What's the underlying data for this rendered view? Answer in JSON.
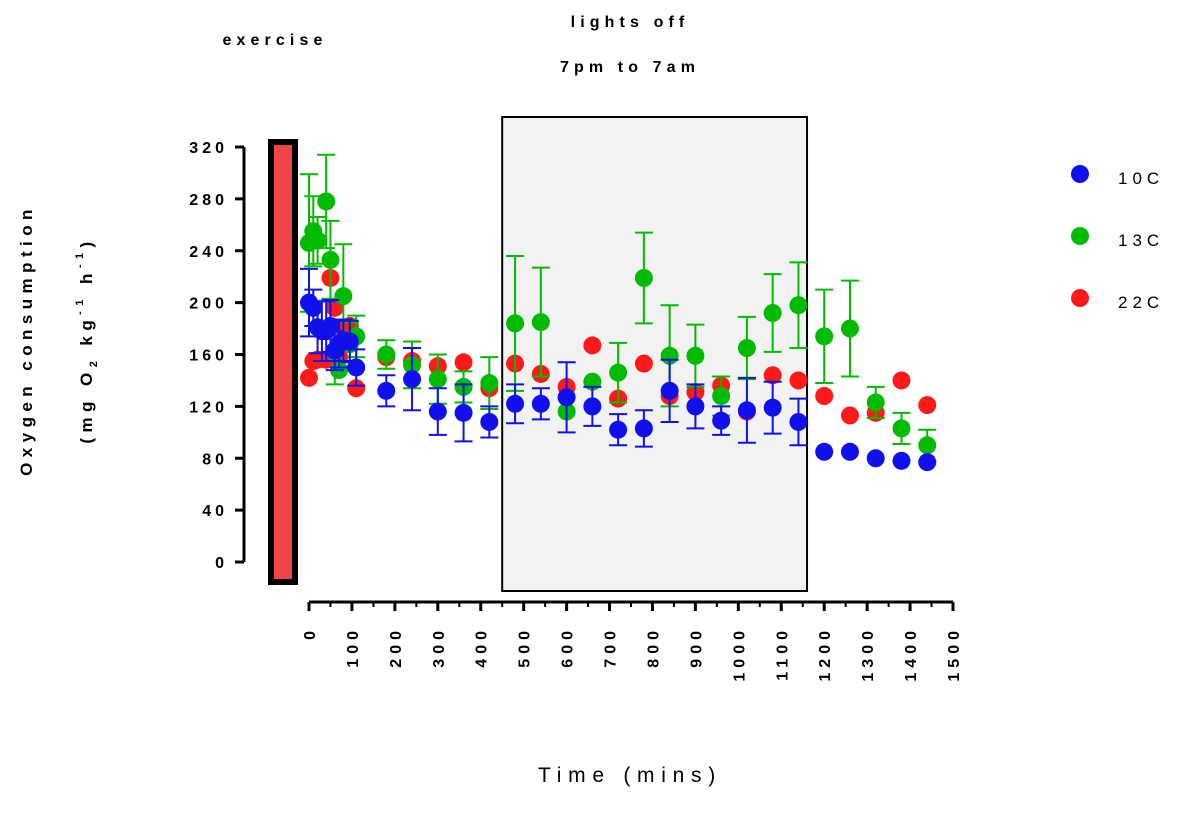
{
  "chart_data": {
    "type": "scatter",
    "xlabel": "Time (mins)",
    "ylabel_line1": "Oxygen consumption",
    "ylabel_line2": "(mg O",
    "ylabel_sub": "2",
    "ylabel_line2b": " kg",
    "ylabel_sup1": "-1",
    "ylabel_line2c": " h",
    "ylabel_sup2": "-1",
    "ylabel_line2d": ")",
    "xlim": [
      0,
      1500
    ],
    "ylim": [
      -20,
      320
    ],
    "x_ticks": [
      0,
      100,
      200,
      300,
      400,
      500,
      600,
      700,
      800,
      900,
      1000,
      1100,
      1200,
      1300,
      1400,
      1500
    ],
    "x_tick_labels": [
      "0",
      "100",
      "200",
      "300",
      "400",
      "500",
      "600",
      "700",
      "800",
      "900",
      "1000",
      "1100",
      "1200",
      "1300",
      "1400",
      "1500"
    ],
    "y_ticks": [
      0,
      40,
      80,
      120,
      160,
      200,
      240,
      280,
      320
    ],
    "y_tick_labels": [
      "0",
      "40",
      "80",
      "120",
      "160",
      "200",
      "240",
      "280",
      "320"
    ],
    "grid": false,
    "legend_position": "right",
    "annotations": {
      "exercise": "exercise",
      "lights_off": "lights off",
      "lights_hours": "7pm to 7am",
      "exercise_value": 320,
      "lights_off_range": [
        450,
        1160
      ]
    },
    "series": [
      {
        "name": "22C",
        "color": "#ff1a1a",
        "x": [
          0,
          10,
          20,
          40,
          50,
          60,
          70,
          80,
          95,
          110,
          180,
          240,
          300,
          360,
          420,
          480,
          540,
          600,
          660,
          720,
          780,
          840,
          900,
          960,
          1020,
          1080,
          1140,
          1200,
          1260,
          1320,
          1380,
          1440
        ],
        "y": [
          142,
          155,
          156,
          156,
          219,
          196,
          158,
          180,
          182,
          134,
          158,
          155,
          151,
          154,
          134,
          153,
          145,
          135,
          167,
          126,
          153,
          128,
          131,
          136,
          116,
          144,
          140,
          128,
          113,
          115,
          140,
          121
        ],
        "err": [
          0,
          0,
          0,
          0,
          0,
          0,
          0,
          0,
          0,
          0,
          0,
          0,
          0,
          0,
          0,
          0,
          0,
          0,
          0,
          0,
          0,
          0,
          0,
          0,
          0,
          0,
          0,
          0,
          0,
          0,
          0,
          0
        ]
      },
      {
        "name": "13C",
        "color": "#00bb00",
        "x": [
          0,
          10,
          20,
          40,
          50,
          60,
          70,
          80,
          95,
          110,
          180,
          240,
          300,
          360,
          420,
          480,
          540,
          600,
          660,
          720,
          780,
          840,
          900,
          960,
          1020,
          1080,
          1140,
          1200,
          1260,
          1320,
          1380,
          1440
        ],
        "y": [
          246,
          255,
          248,
          278,
          233,
          162,
          148,
          205,
          168,
          174,
          160,
          152,
          141,
          135,
          138,
          184,
          185,
          116,
          139,
          146,
          219,
          159,
          159,
          128,
          165,
          192,
          198,
          174,
          180,
          123,
          103,
          90
        ],
        "err": [
          53,
          27,
          18,
          36,
          30,
          25,
          0,
          40,
          17,
          16,
          11,
          18,
          19,
          12,
          20,
          52,
          42,
          0,
          0,
          23,
          35,
          39,
          24,
          15,
          24,
          30,
          33,
          36,
          37,
          12,
          12,
          12
        ]
      },
      {
        "name": "10C",
        "color": "#1010ee",
        "x": [
          0,
          10,
          20,
          30,
          40,
          50,
          60,
          70,
          80,
          95,
          110,
          180,
          240,
          300,
          360,
          420,
          480,
          540,
          600,
          660,
          720,
          780,
          840,
          900,
          960,
          1020,
          1080,
          1140,
          1200,
          1260,
          1320,
          1380,
          1440
        ],
        "y": [
          200,
          196,
          181,
          178,
          178,
          182,
          163,
          168,
          171,
          170,
          150,
          132,
          141,
          116,
          115,
          108,
          122,
          122,
          127,
          120,
          102,
          103,
          132,
          120,
          109,
          117,
          119,
          108,
          85,
          85,
          80,
          78,
          77
        ],
        "err": [
          26,
          14,
          20,
          23,
          23,
          20,
          15,
          18,
          16,
          16,
          14,
          12,
          24,
          18,
          22,
          12,
          15,
          12,
          27,
          15,
          12,
          14,
          24,
          17,
          11,
          25,
          20,
          18,
          0,
          0,
          0,
          0,
          0
        ]
      }
    ],
    "legend_order": [
      "10C",
      "13C",
      "22C"
    ]
  }
}
